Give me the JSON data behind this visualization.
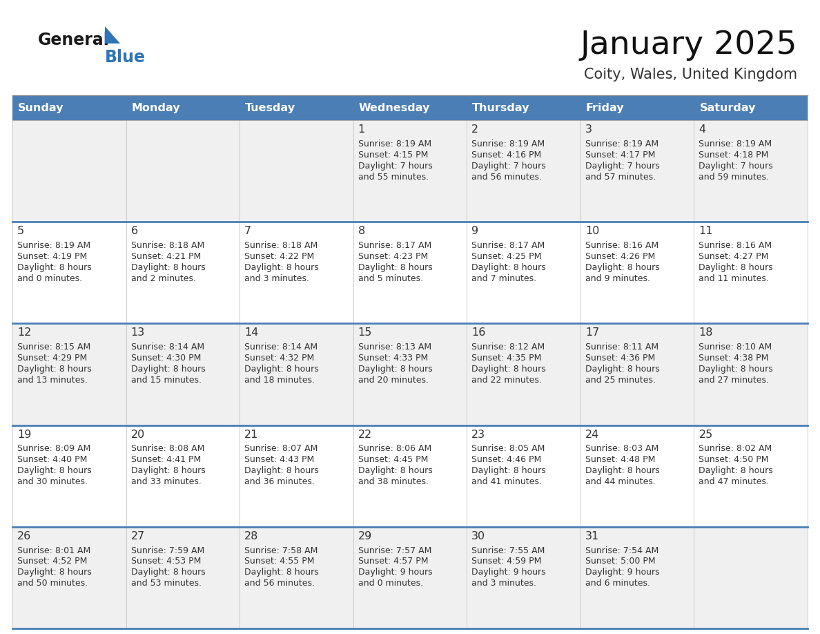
{
  "title": "January 2025",
  "subtitle": "Coity, Wales, United Kingdom",
  "header_bg": "#4A7EB5",
  "header_text_color": "#FFFFFF",
  "row_bg_light": "#F0F0F0",
  "row_bg_white": "#FFFFFF",
  "separator_color": "#4A7EB5",
  "cell_border_color": "#CCCCCC",
  "text_color": "#333333",
  "day_num_color": "#333333",
  "day_headers": [
    "Sunday",
    "Monday",
    "Tuesday",
    "Wednesday",
    "Thursday",
    "Friday",
    "Saturday"
  ],
  "logo_general_color": "#1A1A1A",
  "logo_blue_color": "#2E75B6",
  "days": [
    {
      "day": 1,
      "col": 3,
      "row": 0,
      "sunrise": "8:19 AM",
      "sunset": "4:15 PM",
      "daylight_h": "7 hours",
      "daylight_m": "and 55 minutes."
    },
    {
      "day": 2,
      "col": 4,
      "row": 0,
      "sunrise": "8:19 AM",
      "sunset": "4:16 PM",
      "daylight_h": "7 hours",
      "daylight_m": "and 56 minutes."
    },
    {
      "day": 3,
      "col": 5,
      "row": 0,
      "sunrise": "8:19 AM",
      "sunset": "4:17 PM",
      "daylight_h": "7 hours",
      "daylight_m": "and 57 minutes."
    },
    {
      "day": 4,
      "col": 6,
      "row": 0,
      "sunrise": "8:19 AM",
      "sunset": "4:18 PM",
      "daylight_h": "7 hours",
      "daylight_m": "and 59 minutes."
    },
    {
      "day": 5,
      "col": 0,
      "row": 1,
      "sunrise": "8:19 AM",
      "sunset": "4:19 PM",
      "daylight_h": "8 hours",
      "daylight_m": "and 0 minutes."
    },
    {
      "day": 6,
      "col": 1,
      "row": 1,
      "sunrise": "8:18 AM",
      "sunset": "4:21 PM",
      "daylight_h": "8 hours",
      "daylight_m": "and 2 minutes."
    },
    {
      "day": 7,
      "col": 2,
      "row": 1,
      "sunrise": "8:18 AM",
      "sunset": "4:22 PM",
      "daylight_h": "8 hours",
      "daylight_m": "and 3 minutes."
    },
    {
      "day": 8,
      "col": 3,
      "row": 1,
      "sunrise": "8:17 AM",
      "sunset": "4:23 PM",
      "daylight_h": "8 hours",
      "daylight_m": "and 5 minutes."
    },
    {
      "day": 9,
      "col": 4,
      "row": 1,
      "sunrise": "8:17 AM",
      "sunset": "4:25 PM",
      "daylight_h": "8 hours",
      "daylight_m": "and 7 minutes."
    },
    {
      "day": 10,
      "col": 5,
      "row": 1,
      "sunrise": "8:16 AM",
      "sunset": "4:26 PM",
      "daylight_h": "8 hours",
      "daylight_m": "and 9 minutes."
    },
    {
      "day": 11,
      "col": 6,
      "row": 1,
      "sunrise": "8:16 AM",
      "sunset": "4:27 PM",
      "daylight_h": "8 hours",
      "daylight_m": "and 11 minutes."
    },
    {
      "day": 12,
      "col": 0,
      "row": 2,
      "sunrise": "8:15 AM",
      "sunset": "4:29 PM",
      "daylight_h": "8 hours",
      "daylight_m": "and 13 minutes."
    },
    {
      "day": 13,
      "col": 1,
      "row": 2,
      "sunrise": "8:14 AM",
      "sunset": "4:30 PM",
      "daylight_h": "8 hours",
      "daylight_m": "and 15 minutes."
    },
    {
      "day": 14,
      "col": 2,
      "row": 2,
      "sunrise": "8:14 AM",
      "sunset": "4:32 PM",
      "daylight_h": "8 hours",
      "daylight_m": "and 18 minutes."
    },
    {
      "day": 15,
      "col": 3,
      "row": 2,
      "sunrise": "8:13 AM",
      "sunset": "4:33 PM",
      "daylight_h": "8 hours",
      "daylight_m": "and 20 minutes."
    },
    {
      "day": 16,
      "col": 4,
      "row": 2,
      "sunrise": "8:12 AM",
      "sunset": "4:35 PM",
      "daylight_h": "8 hours",
      "daylight_m": "and 22 minutes."
    },
    {
      "day": 17,
      "col": 5,
      "row": 2,
      "sunrise": "8:11 AM",
      "sunset": "4:36 PM",
      "daylight_h": "8 hours",
      "daylight_m": "and 25 minutes."
    },
    {
      "day": 18,
      "col": 6,
      "row": 2,
      "sunrise": "8:10 AM",
      "sunset": "4:38 PM",
      "daylight_h": "8 hours",
      "daylight_m": "and 27 minutes."
    },
    {
      "day": 19,
      "col": 0,
      "row": 3,
      "sunrise": "8:09 AM",
      "sunset": "4:40 PM",
      "daylight_h": "8 hours",
      "daylight_m": "and 30 minutes."
    },
    {
      "day": 20,
      "col": 1,
      "row": 3,
      "sunrise": "8:08 AM",
      "sunset": "4:41 PM",
      "daylight_h": "8 hours",
      "daylight_m": "and 33 minutes."
    },
    {
      "day": 21,
      "col": 2,
      "row": 3,
      "sunrise": "8:07 AM",
      "sunset": "4:43 PM",
      "daylight_h": "8 hours",
      "daylight_m": "and 36 minutes."
    },
    {
      "day": 22,
      "col": 3,
      "row": 3,
      "sunrise": "8:06 AM",
      "sunset": "4:45 PM",
      "daylight_h": "8 hours",
      "daylight_m": "and 38 minutes."
    },
    {
      "day": 23,
      "col": 4,
      "row": 3,
      "sunrise": "8:05 AM",
      "sunset": "4:46 PM",
      "daylight_h": "8 hours",
      "daylight_m": "and 41 minutes."
    },
    {
      "day": 24,
      "col": 5,
      "row": 3,
      "sunrise": "8:03 AM",
      "sunset": "4:48 PM",
      "daylight_h": "8 hours",
      "daylight_m": "and 44 minutes."
    },
    {
      "day": 25,
      "col": 6,
      "row": 3,
      "sunrise": "8:02 AM",
      "sunset": "4:50 PM",
      "daylight_h": "8 hours",
      "daylight_m": "and 47 minutes."
    },
    {
      "day": 26,
      "col": 0,
      "row": 4,
      "sunrise": "8:01 AM",
      "sunset": "4:52 PM",
      "daylight_h": "8 hours",
      "daylight_m": "and 50 minutes."
    },
    {
      "day": 27,
      "col": 1,
      "row": 4,
      "sunrise": "7:59 AM",
      "sunset": "4:53 PM",
      "daylight_h": "8 hours",
      "daylight_m": "and 53 minutes."
    },
    {
      "day": 28,
      "col": 2,
      "row": 4,
      "sunrise": "7:58 AM",
      "sunset": "4:55 PM",
      "daylight_h": "8 hours",
      "daylight_m": "and 56 minutes."
    },
    {
      "day": 29,
      "col": 3,
      "row": 4,
      "sunrise": "7:57 AM",
      "sunset": "4:57 PM",
      "daylight_h": "9 hours",
      "daylight_m": "and 0 minutes."
    },
    {
      "day": 30,
      "col": 4,
      "row": 4,
      "sunrise": "7:55 AM",
      "sunset": "4:59 PM",
      "daylight_h": "9 hours",
      "daylight_m": "and 3 minutes."
    },
    {
      "day": 31,
      "col": 5,
      "row": 4,
      "sunrise": "7:54 AM",
      "sunset": "5:00 PM",
      "daylight_h": "9 hours",
      "daylight_m": "and 6 minutes."
    }
  ]
}
